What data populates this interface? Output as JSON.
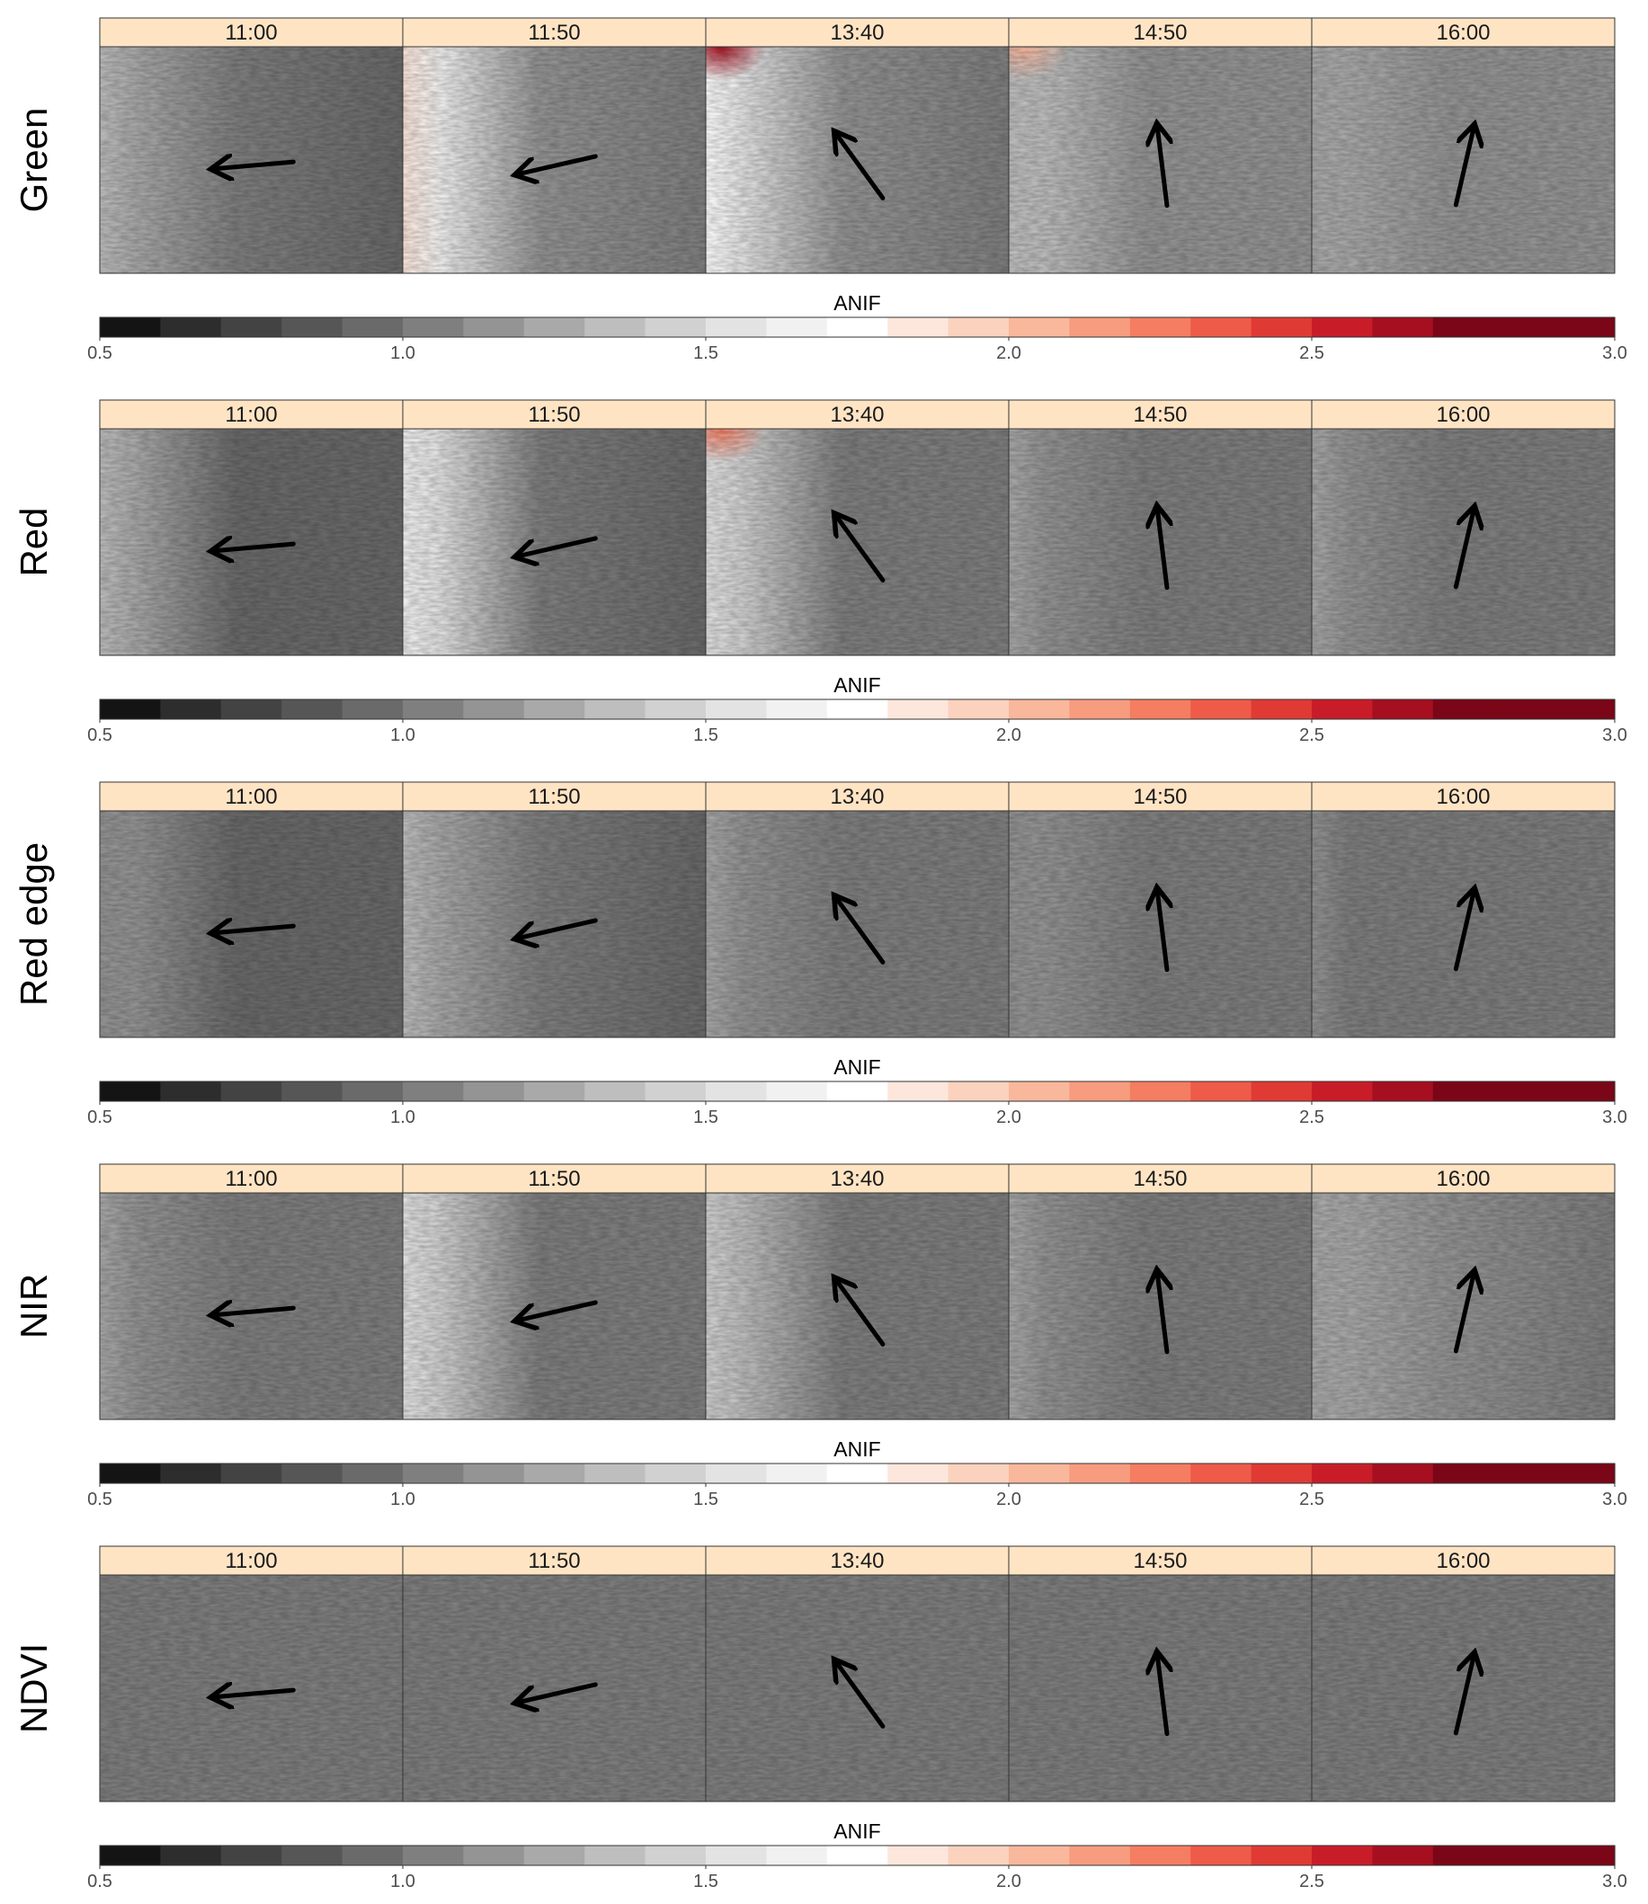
{
  "chart_data": {
    "type": "heatmap",
    "rows": [
      {
        "label": "Green"
      },
      {
        "label": "Red"
      },
      {
        "label": "Red edge"
      },
      {
        "label": "NIR"
      },
      {
        "label": "NDVI"
      }
    ],
    "times": [
      "11:00",
      "11:50",
      "13:40",
      "14:50",
      "16:00"
    ],
    "colorbar": {
      "title": "ANIF",
      "range": [
        0.5,
        3.0
      ],
      "step": 0.1,
      "tick_values": [
        0.5,
        1.0,
        1.5,
        2.0,
        2.5,
        3.0
      ],
      "tick_labels": [
        "0.5",
        "1.0",
        "1.5",
        "2.0",
        "2.5",
        "3.0"
      ],
      "colors": [
        "#141414",
        "#2d2d2d",
        "#434343",
        "#565656",
        "#6a6a6a",
        "#7f7f7f",
        "#949494",
        "#a9a9a9",
        "#bebebe",
        "#d1d1d1",
        "#e3e3e3",
        "#f1f1f1",
        "#ffffff",
        "#fde7dc",
        "#fbd2bd",
        "#f9b79c",
        "#f79c7f",
        "#f47d62",
        "#ee5b49",
        "#e03a35",
        "#c81d28",
        "#a50f1f",
        "#7a0617"
      ]
    },
    "strip_color": "#ffe4c4",
    "sun_azimuth_arrows_deg": [
      -95,
      -103,
      -36,
      -7,
      13
    ],
    "panel_tones": [
      [
        {
          "left": 1.3,
          "right": 0.98,
          "hotspot": null
        },
        {
          "left": 1.9,
          "right": 1.0,
          "hotspot": null
        },
        {
          "left": 1.75,
          "right": 1.08,
          "hotspot": 2.6
        },
        {
          "left": 1.4,
          "right": 1.1,
          "hotspot": 2.0
        },
        {
          "left": 1.25,
          "right": 1.15,
          "hotspot": null
        }
      ],
      [
        {
          "left": 1.3,
          "right": 0.92,
          "hotspot": null
        },
        {
          "left": 1.7,
          "right": 0.98,
          "hotspot": null
        },
        {
          "left": 1.55,
          "right": 1.02,
          "hotspot": 2.2
        },
        {
          "left": 1.25,
          "right": 1.05,
          "hotspot": null
        },
        {
          "left": 1.22,
          "right": 1.08,
          "hotspot": null
        }
      ],
      [
        {
          "left": 1.2,
          "right": 0.95,
          "hotspot": null
        },
        {
          "left": 1.3,
          "right": 0.98,
          "hotspot": null
        },
        {
          "left": 1.22,
          "right": 1.0,
          "hotspot": null
        },
        {
          "left": 1.15,
          "right": 1.02,
          "hotspot": null
        },
        {
          "left": 1.12,
          "right": 1.02,
          "hotspot": null
        }
      ],
      [
        {
          "left": 1.25,
          "right": 1.0,
          "hotspot": null
        },
        {
          "left": 1.55,
          "right": 1.0,
          "hotspot": null
        },
        {
          "left": 1.45,
          "right": 1.05,
          "hotspot": null
        },
        {
          "left": 1.25,
          "right": 1.05,
          "hotspot": null
        },
        {
          "left": 1.25,
          "right": 1.08,
          "hotspot": null
        }
      ],
      [
        {
          "left": 1.02,
          "right": 1.06,
          "hotspot": null
        },
        {
          "left": 1.0,
          "right": 1.05,
          "hotspot": null
        },
        {
          "left": 1.0,
          "right": 1.04,
          "hotspot": null
        },
        {
          "left": 1.03,
          "right": 1.04,
          "hotspot": null
        },
        {
          "left": 1.03,
          "right": 1.04,
          "hotspot": null
        }
      ]
    ]
  }
}
